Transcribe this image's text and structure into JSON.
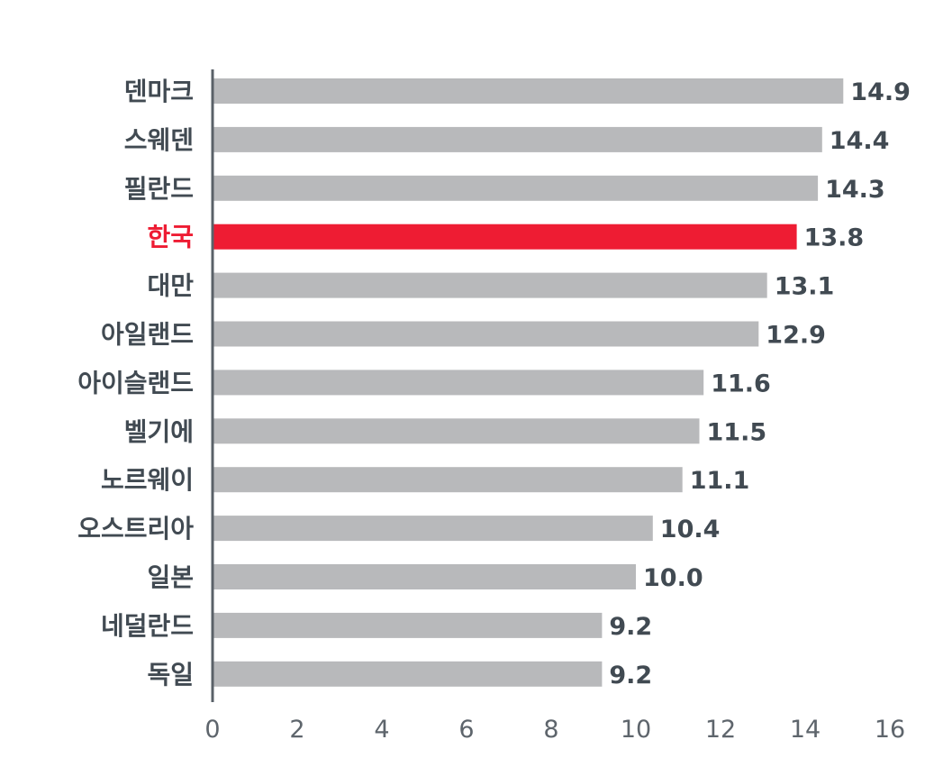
{
  "chart_data": {
    "type": "bar",
    "orientation": "horizontal",
    "categories": [
      "덴마크",
      "스웨덴",
      "필란드",
      "한국",
      "대만",
      "아일랜드",
      "아이슬랜드",
      "벨기에",
      "노르웨이",
      "오스트리아",
      "일본",
      "네덜란드",
      "독일"
    ],
    "values": [
      14.9,
      14.4,
      14.3,
      13.8,
      13.1,
      12.9,
      11.6,
      11.5,
      11.1,
      10.4,
      10.0,
      9.2,
      9.2
    ],
    "value_labels": [
      "14.9",
      "14.4",
      "14.3",
      "13.8",
      "13.1",
      "12.9",
      "11.6",
      "11.5",
      "11.1",
      "10.4",
      "10.0",
      "9.2",
      "9.2"
    ],
    "highlight": "한국",
    "xlim": [
      0,
      16
    ],
    "xticks": [
      "0",
      "2",
      "4",
      "6",
      "8",
      "10",
      "12",
      "14",
      "16"
    ],
    "title": "",
    "xlabel": "",
    "ylabel": "",
    "grid": false,
    "legend": "none",
    "colors": {
      "bar": "#b8b9bb",
      "highlight_bar": "#ee1c33",
      "text": "#414a52",
      "highlight_text": "#ee1c33",
      "axis": "#5a6168",
      "tick_text": "#5e656c"
    }
  }
}
